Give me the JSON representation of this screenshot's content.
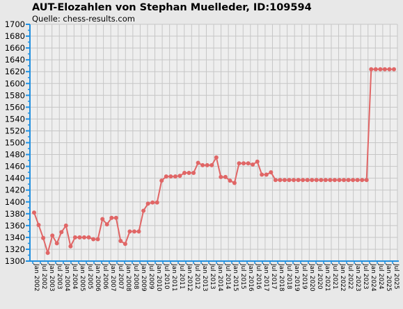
{
  "chart_data": {
    "type": "line",
    "title": "AUT-Elozahlen von Stephan Muelleder, ID:109594",
    "subtitle": "Quelle: chess-results.com",
    "xlabel": "",
    "ylabel": "",
    "ylim": [
      1300,
      1700
    ],
    "yticks": [
      1300,
      1320,
      1340,
      1360,
      1380,
      1400,
      1420,
      1440,
      1460,
      1480,
      1500,
      1520,
      1540,
      1560,
      1580,
      1600,
      1620,
      1640,
      1660,
      1680,
      1700
    ],
    "grid": true,
    "line_color": "#e06666",
    "x_tick_labels": [
      "Jan 2002",
      "Jul 2002",
      "Jan 2003",
      "Jul 2003",
      "Jan 2004",
      "Jul 2004",
      "Jan 2005",
      "Jul 2005",
      "Jan 2006",
      "Jul 2006",
      "Jan 2007",
      "Jul 2007",
      "Jan 2008",
      "Jul 2008",
      "Jan 2009",
      "Jul 2009",
      "Jan 2010",
      "Jul 2010",
      "Jan 2011",
      "Jul 2011",
      "Jan 2012",
      "Jul 2012",
      "Jan 2013",
      "Jul 2013",
      "Jan 2014",
      "Jul 2014",
      "Jan 2015",
      "Jul 2015",
      "Jan 2016",
      "Jul 2016",
      "Jan 2017",
      "Jul 2017",
      "Jan 2018",
      "Jul 2018",
      "Jan 2019",
      "Jul 2019",
      "Jan 2020",
      "Jul 2020",
      "Jan 2021",
      "Jul 2021",
      "Jan 2022",
      "Jul 2022",
      "Jan 2023",
      "Jul 2023",
      "Jan 2024",
      "Jul 2024",
      "Jan 2025",
      "Jul 2025"
    ],
    "values": [
      1382,
      1361,
      1339,
      1314,
      1343,
      1330,
      1349,
      1360,
      1325,
      1340,
      1340,
      1340,
      1340,
      1337,
      1337,
      1371,
      1362,
      1373,
      1373,
      1334,
      1329,
      1350,
      1350,
      1350,
      1385,
      1397,
      1399,
      1399,
      1436,
      1443,
      1443,
      1443,
      1444,
      1449,
      1449,
      1449,
      1466,
      1462,
      1462,
      1462,
      1475,
      1442,
      1442,
      1436,
      1432,
      1465,
      1465,
      1465,
      1463,
      1468,
      1446,
      1446,
      1450,
      1437,
      1437,
      1437,
      1437,
      1437,
      1437,
      1437,
      1437,
      1437,
      1437,
      1437,
      1437,
      1437,
      1437,
      1437,
      1437,
      1437,
      1437,
      1437,
      1437,
      1437,
      1624,
      1624,
      1624,
      1624,
      1624,
      1624
    ]
  }
}
